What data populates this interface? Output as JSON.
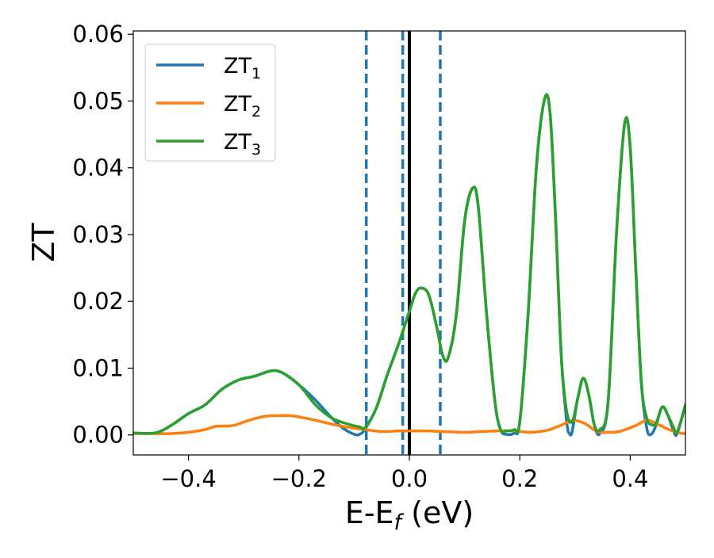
{
  "chart_data": {
    "type": "line",
    "xlabel": "E-E",
    "xlabel_sub": "f",
    "xlabel_suffix": " (eV)",
    "ylabel": "ZT",
    "xlim": [
      -0.5,
      0.5
    ],
    "ylim": [
      -0.003,
      0.0605
    ],
    "xticks": [
      -0.4,
      -0.2,
      0.0,
      0.2,
      0.4
    ],
    "xtick_labels": [
      "−0.4",
      "−0.2",
      "0.0",
      "0.2",
      "0.4"
    ],
    "yticks": [
      0.0,
      0.01,
      0.02,
      0.03,
      0.04,
      0.05,
      0.06
    ],
    "ytick_labels": [
      "0.00",
      "0.01",
      "0.02",
      "0.03",
      "0.04",
      "0.05",
      "0.06"
    ],
    "grid": false,
    "legend_position": "top-left",
    "legend": [
      {
        "base": "ZT",
        "sub": "1",
        "color": "#1f77b4"
      },
      {
        "base": "ZT",
        "sub": "2",
        "color": "#ff7f0e"
      },
      {
        "base": "ZT",
        "sub": "3",
        "color": "#2ca02c"
      }
    ],
    "vlines": [
      {
        "x": -0.078,
        "style": "dashed",
        "color": "#1f77b4"
      },
      {
        "x": -0.012,
        "style": "dashed",
        "color": "#1f77b4"
      },
      {
        "x": 0.0,
        "style": "solid",
        "color": "#000000"
      },
      {
        "x": 0.056,
        "style": "dashed",
        "color": "#1f77b4"
      }
    ],
    "series": [
      {
        "color": "#1f77b4",
        "points": [
          [
            -0.5,
            0.0003
          ],
          [
            -0.46,
            0.0003
          ],
          [
            -0.43,
            0.0015
          ],
          [
            -0.4,
            0.0032
          ],
          [
            -0.37,
            0.0045
          ],
          [
            -0.34,
            0.0068
          ],
          [
            -0.31,
            0.0082
          ],
          [
            -0.28,
            0.0088
          ],
          [
            -0.25,
            0.0096
          ],
          [
            -0.23,
            0.0093
          ],
          [
            -0.2,
            0.0075
          ],
          [
            -0.17,
            0.0052
          ],
          [
            -0.14,
            0.0025
          ],
          [
            -0.12,
            0.001
          ],
          [
            -0.1,
            0.0001
          ],
          [
            -0.09,
            0.0001
          ],
          [
            -0.08,
            0.0009
          ],
          [
            -0.06,
            0.004
          ],
          [
            -0.04,
            0.009
          ],
          [
            -0.02,
            0.0135
          ],
          [
            0.0,
            0.0185
          ],
          [
            0.01,
            0.021
          ],
          [
            0.02,
            0.022
          ],
          [
            0.035,
            0.021
          ],
          [
            0.05,
            0.016
          ],
          [
            0.06,
            0.012
          ],
          [
            0.07,
            0.0115
          ],
          [
            0.085,
            0.018
          ],
          [
            0.1,
            0.032
          ],
          [
            0.115,
            0.037
          ],
          [
            0.125,
            0.034
          ],
          [
            0.14,
            0.018
          ],
          [
            0.155,
            0.005
          ],
          [
            0.165,
            0.0008
          ],
          [
            0.175,
            0.0001
          ],
          [
            0.19,
            0.0003
          ],
          [
            0.2,
            0.002
          ],
          [
            0.215,
            0.018
          ],
          [
            0.23,
            0.04
          ],
          [
            0.245,
            0.0503
          ],
          [
            0.255,
            0.048
          ],
          [
            0.265,
            0.032
          ],
          [
            0.275,
            0.012
          ],
          [
            0.285,
            0.002
          ],
          [
            0.29,
            0.0002
          ],
          [
            0.295,
            0.0006
          ],
          [
            0.305,
            0.0055
          ],
          [
            0.315,
            0.0085
          ],
          [
            0.325,
            0.006
          ],
          [
            0.335,
            0.0015
          ],
          [
            0.345,
            0.0002
          ],
          [
            0.36,
            0.005
          ],
          [
            0.375,
            0.03
          ],
          [
            0.39,
            0.0467
          ],
          [
            0.4,
            0.043
          ],
          [
            0.41,
            0.025
          ],
          [
            0.42,
            0.008
          ],
          [
            0.43,
            0.001
          ],
          [
            0.438,
            0.0001
          ],
          [
            0.447,
            0.0015
          ],
          [
            0.458,
            0.0042
          ],
          [
            0.468,
            0.003
          ],
          [
            0.478,
            0.0007
          ],
          [
            0.485,
            0.0002
          ],
          [
            0.5,
            0.0045
          ]
        ]
      },
      {
        "color": "#ff7f0e",
        "points": [
          [
            -0.5,
            0.0002
          ],
          [
            -0.46,
            0.0002
          ],
          [
            -0.43,
            0.0002
          ],
          [
            -0.4,
            0.0004
          ],
          [
            -0.37,
            0.0008
          ],
          [
            -0.35,
            0.0013
          ],
          [
            -0.32,
            0.0014
          ],
          [
            -0.29,
            0.0022
          ],
          [
            -0.26,
            0.0028
          ],
          [
            -0.22,
            0.0029
          ],
          [
            -0.2,
            0.0027
          ],
          [
            -0.17,
            0.0022
          ],
          [
            -0.14,
            0.0016
          ],
          [
            -0.1,
            0.001
          ],
          [
            -0.08,
            0.0008
          ],
          [
            -0.05,
            0.0005
          ],
          [
            -0.02,
            0.0006
          ],
          [
            0.0,
            0.0006
          ],
          [
            0.03,
            0.0006
          ],
          [
            0.06,
            0.0005
          ],
          [
            0.1,
            0.0004
          ],
          [
            0.13,
            0.0005
          ],
          [
            0.16,
            0.0006
          ],
          [
            0.19,
            0.0006
          ],
          [
            0.22,
            0.0004
          ],
          [
            0.25,
            0.0007
          ],
          [
            0.27,
            0.0013
          ],
          [
            0.29,
            0.002
          ],
          [
            0.3,
            0.0022
          ],
          [
            0.32,
            0.0016
          ],
          [
            0.34,
            0.0005
          ],
          [
            0.36,
            0.0004
          ],
          [
            0.38,
            0.0005
          ],
          [
            0.41,
            0.0014
          ],
          [
            0.43,
            0.0022
          ],
          [
            0.45,
            0.0016
          ],
          [
            0.47,
            0.0008
          ],
          [
            0.49,
            0.0003
          ],
          [
            0.5,
            0.0002
          ]
        ]
      },
      {
        "color": "#2ca02c",
        "points": [
          [
            -0.5,
            0.0003
          ],
          [
            -0.46,
            0.0003
          ],
          [
            -0.43,
            0.0015
          ],
          [
            -0.4,
            0.0032
          ],
          [
            -0.37,
            0.0045
          ],
          [
            -0.34,
            0.0068
          ],
          [
            -0.31,
            0.0082
          ],
          [
            -0.28,
            0.0088
          ],
          [
            -0.25,
            0.0096
          ],
          [
            -0.23,
            0.0093
          ],
          [
            -0.2,
            0.0075
          ],
          [
            -0.17,
            0.0045
          ],
          [
            -0.14,
            0.0025
          ],
          [
            -0.11,
            0.0016
          ],
          [
            -0.09,
            0.0012
          ],
          [
            -0.08,
            0.0011
          ],
          [
            -0.06,
            0.004
          ],
          [
            -0.04,
            0.009
          ],
          [
            -0.02,
            0.0135
          ],
          [
            0.0,
            0.0185
          ],
          [
            0.01,
            0.021
          ],
          [
            0.02,
            0.022
          ],
          [
            0.035,
            0.021
          ],
          [
            0.05,
            0.016
          ],
          [
            0.06,
            0.012
          ],
          [
            0.07,
            0.0115
          ],
          [
            0.085,
            0.018
          ],
          [
            0.1,
            0.032
          ],
          [
            0.115,
            0.037
          ],
          [
            0.125,
            0.034
          ],
          [
            0.14,
            0.018
          ],
          [
            0.155,
            0.005
          ],
          [
            0.165,
            0.0008
          ],
          [
            0.175,
            0.0006
          ],
          [
            0.19,
            0.0008
          ],
          [
            0.2,
            0.002
          ],
          [
            0.215,
            0.018
          ],
          [
            0.23,
            0.04
          ],
          [
            0.245,
            0.0503
          ],
          [
            0.255,
            0.048
          ],
          [
            0.265,
            0.032
          ],
          [
            0.275,
            0.012
          ],
          [
            0.285,
            0.0035
          ],
          [
            0.295,
            0.002
          ],
          [
            0.305,
            0.0055
          ],
          [
            0.315,
            0.0085
          ],
          [
            0.325,
            0.006
          ],
          [
            0.335,
            0.0015
          ],
          [
            0.345,
            0.0008
          ],
          [
            0.36,
            0.005
          ],
          [
            0.375,
            0.03
          ],
          [
            0.39,
            0.0467
          ],
          [
            0.4,
            0.043
          ],
          [
            0.41,
            0.025
          ],
          [
            0.42,
            0.008
          ],
          [
            0.43,
            0.0025
          ],
          [
            0.44,
            0.0015
          ],
          [
            0.447,
            0.0018
          ],
          [
            0.458,
            0.0042
          ],
          [
            0.468,
            0.003
          ],
          [
            0.478,
            0.0012
          ],
          [
            0.485,
            0.0004
          ],
          [
            0.5,
            0.0045
          ]
        ]
      }
    ]
  }
}
